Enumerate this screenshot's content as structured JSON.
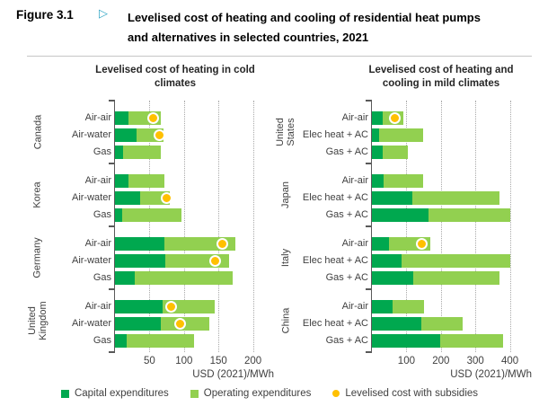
{
  "figure": {
    "label": "Figure 3.1",
    "arrow": "▷",
    "title": "Levelised cost of heating and cooling of residential heat pumps and alternatives in selected countries, 2021"
  },
  "colors": {
    "capital": "#00A84F",
    "operating": "#92D050",
    "subsidy": "#FFC000",
    "axis": "#595959",
    "gridline": "#A9A9A9",
    "text": "#404040"
  },
  "legend": [
    {
      "label": "Capital expenditures",
      "marker": "square",
      "color": "#00A84F"
    },
    {
      "label": "Operating expenditures",
      "marker": "square",
      "color": "#92D050"
    },
    {
      "label": "Levelised cost with subsidies",
      "marker": "circle",
      "color": "#FFC000"
    }
  ],
  "chart_data": [
    {
      "type": "bar",
      "orientation": "horizontal",
      "stacked": true,
      "title": "Levelised cost of heating in cold climates",
      "xlabel": "USD (2021)/MWh",
      "xlim": [
        0,
        210
      ],
      "xticks": [
        50,
        100,
        150,
        200
      ],
      "grid": "vertical-dotted",
      "series_names": [
        "Capital expenditures",
        "Operating expenditures"
      ],
      "dot_series": "Levelised cost with subsidies",
      "units": "USD (2021)/MWh",
      "groups": [
        {
          "country": "Canada",
          "rows": [
            {
              "label": "Air-air",
              "capex": 20,
              "opex": 46,
              "subsidised": 55
            },
            {
              "label": "Air-water",
              "capex": 31,
              "opex": 39,
              "subsidised": 64
            },
            {
              "label": "Gas",
              "capex": 12,
              "opex": 55,
              "subsidised": null
            }
          ]
        },
        {
          "country": "Korea",
          "rows": [
            {
              "label": "Air-air",
              "capex": 20,
              "opex": 52,
              "subsidised": null
            },
            {
              "label": "Air-water",
              "capex": 36,
              "opex": 44,
              "subsidised": 75
            },
            {
              "label": "Gas",
              "capex": 11,
              "opex": 86,
              "subsidised": null
            }
          ]
        },
        {
          "country": "Germany",
          "rows": [
            {
              "label": "Air-air",
              "capex": 72,
              "opex": 102,
              "subsidised": 155
            },
            {
              "label": "Air-water",
              "capex": 73,
              "opex": 92,
              "subsidised": 145
            },
            {
              "label": "Gas",
              "capex": 29,
              "opex": 141,
              "subsidised": null
            }
          ]
        },
        {
          "country": "United Kingdom",
          "rows": [
            {
              "label": "Air-air",
              "capex": 69,
              "opex": 76,
              "subsidised": 82
            },
            {
              "label": "Air-water",
              "capex": 66,
              "opex": 71,
              "subsidised": 94
            },
            {
              "label": "Gas",
              "capex": 17,
              "opex": 97,
              "subsidised": null
            }
          ]
        }
      ]
    },
    {
      "type": "bar",
      "orientation": "horizontal",
      "stacked": true,
      "title": "Levelised cost of heating and cooling in mild climates",
      "xlabel": "USD (2021)/MWh",
      "xlim": [
        0,
        420
      ],
      "xticks": [
        100,
        200,
        300,
        400
      ],
      "grid": "vertical-dotted",
      "series_names": [
        "Capital expenditures",
        "Operating expenditures"
      ],
      "dot_series": "Levelised cost with subsidies",
      "units": "USD (2021)/MWh",
      "groups": [
        {
          "country": "United States",
          "rows": [
            {
              "label": "Air-air",
              "capex": 30,
              "opex": 61,
              "subsidised": 67
            },
            {
              "label": "Elec heat + AC",
              "capex": 22,
              "opex": 127,
              "subsidised": null
            },
            {
              "label": "Gas + AC",
              "capex": 30,
              "opex": 73,
              "subsidised": null
            }
          ]
        },
        {
          "country": "Japan",
          "rows": [
            {
              "label": "Air-air",
              "capex": 33,
              "opex": 116,
              "subsidised": null
            },
            {
              "label": "Elec heat + AC",
              "capex": 116,
              "opex": 254,
              "subsidised": null
            },
            {
              "label": "Gas + AC",
              "capex": 164,
              "opex": 236,
              "subsidised": null
            }
          ]
        },
        {
          "country": "Italy",
          "rows": [
            {
              "label": "Air-air",
              "capex": 49,
              "opex": 119,
              "subsidised": 145
            },
            {
              "label": "Elec heat + AC",
              "capex": 87,
              "opex": 313,
              "subsidised": null
            },
            {
              "label": "Gas + AC",
              "capex": 121,
              "opex": 249,
              "subsidised": null
            }
          ]
        },
        {
          "country": "China",
          "rows": [
            {
              "label": "Air-air",
              "capex": 60,
              "opex": 92,
              "subsidised": null
            },
            {
              "label": "Elec heat + AC",
              "capex": 142,
              "opex": 120,
              "subsidised": null
            },
            {
              "label": "Gas + AC",
              "capex": 198,
              "opex": 182,
              "subsidised": null
            }
          ]
        }
      ]
    }
  ]
}
